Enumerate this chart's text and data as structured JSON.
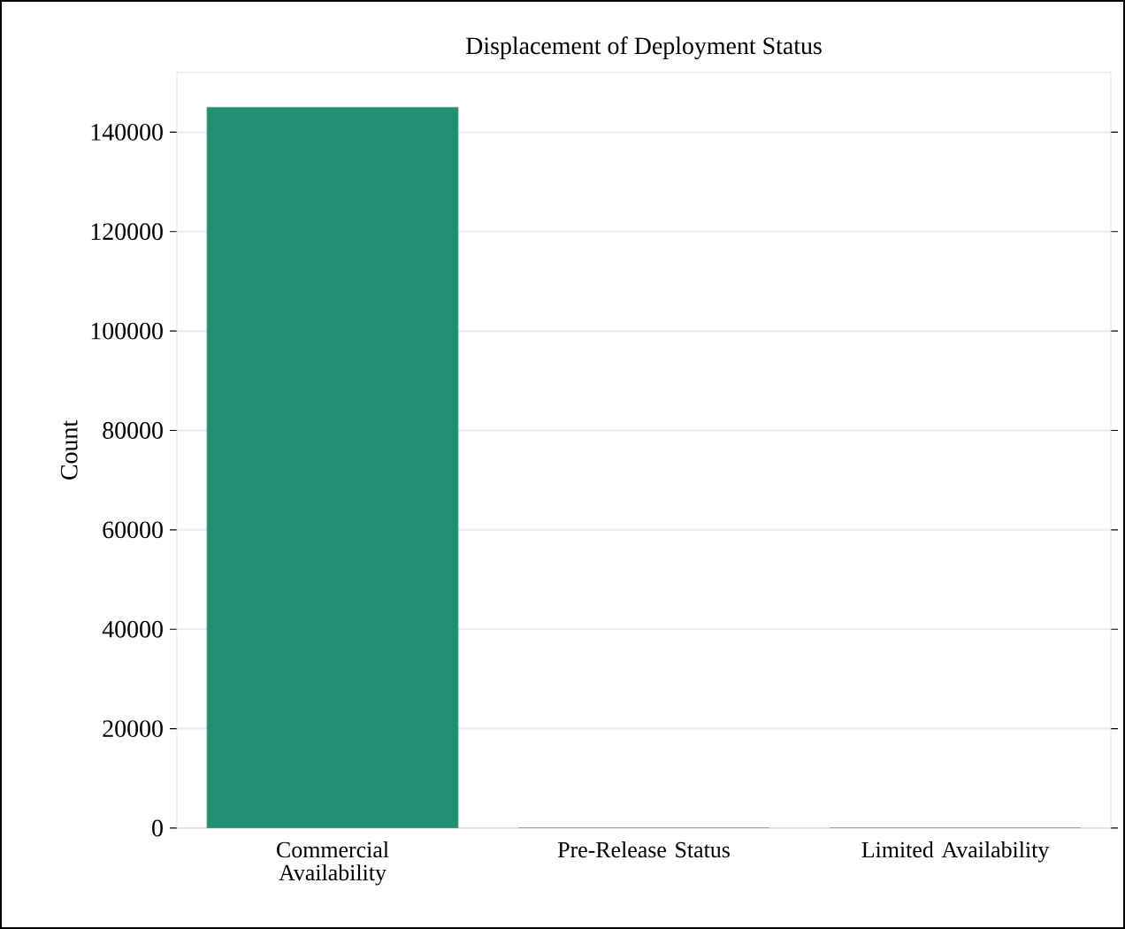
{
  "chart_data": {
    "type": "bar",
    "title": "Displacement of Deployment Status",
    "ylabel": "Count",
    "categories": [
      "Commercial Availability",
      "Pre-Release Status",
      "Limited Availability"
    ],
    "values": [
      145000,
      0,
      0
    ],
    "color": "#238f72",
    "ylim": [
      0,
      152000
    ],
    "yticks": [
      0,
      20000,
      40000,
      60000,
      80000,
      100000,
      120000,
      140000
    ],
    "grid": "y"
  }
}
